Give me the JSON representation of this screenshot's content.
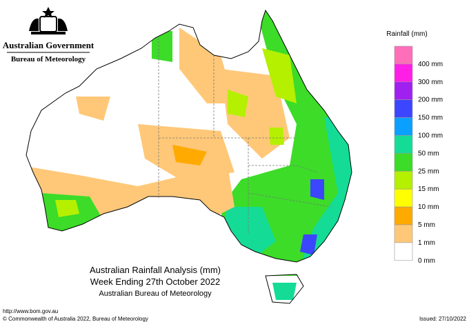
{
  "header": {
    "government": "Australian Government",
    "agency": "Bureau of Meteorology"
  },
  "legend": {
    "title": "Rainfall (mm)",
    "items": [
      {
        "label": "400 mm",
        "color": "#ff6eb9"
      },
      {
        "label": "300 mm",
        "color": "#ff1ee6"
      },
      {
        "label": "200 mm",
        "color": "#a020f0"
      },
      {
        "label": "150 mm",
        "color": "#3c46ff"
      },
      {
        "label": "100 mm",
        "color": "#0aa0ff"
      },
      {
        "label": "50 mm",
        "color": "#14dc96"
      },
      {
        "label": "25 mm",
        "color": "#3cdc28"
      },
      {
        "label": "15 mm",
        "color": "#b4f000"
      },
      {
        "label": "10 mm",
        "color": "#ffff00"
      },
      {
        "label": "5 mm",
        "color": "#ffaa00"
      },
      {
        "label": "1 mm",
        "color": "#ffc878"
      },
      {
        "label": "0 mm",
        "color": "#ffffff"
      }
    ]
  },
  "caption": {
    "title": "Australian Rainfall Analysis (mm)",
    "period": "Week Ending 27th October 2022",
    "source": "Australian Bureau of Meteorology"
  },
  "footer": {
    "url": "http://www.bom.gov.au",
    "copyright": "© Commonwealth of Australia 2022, Bureau of Meteorology",
    "issued": "Issued: 27/10/2022"
  }
}
